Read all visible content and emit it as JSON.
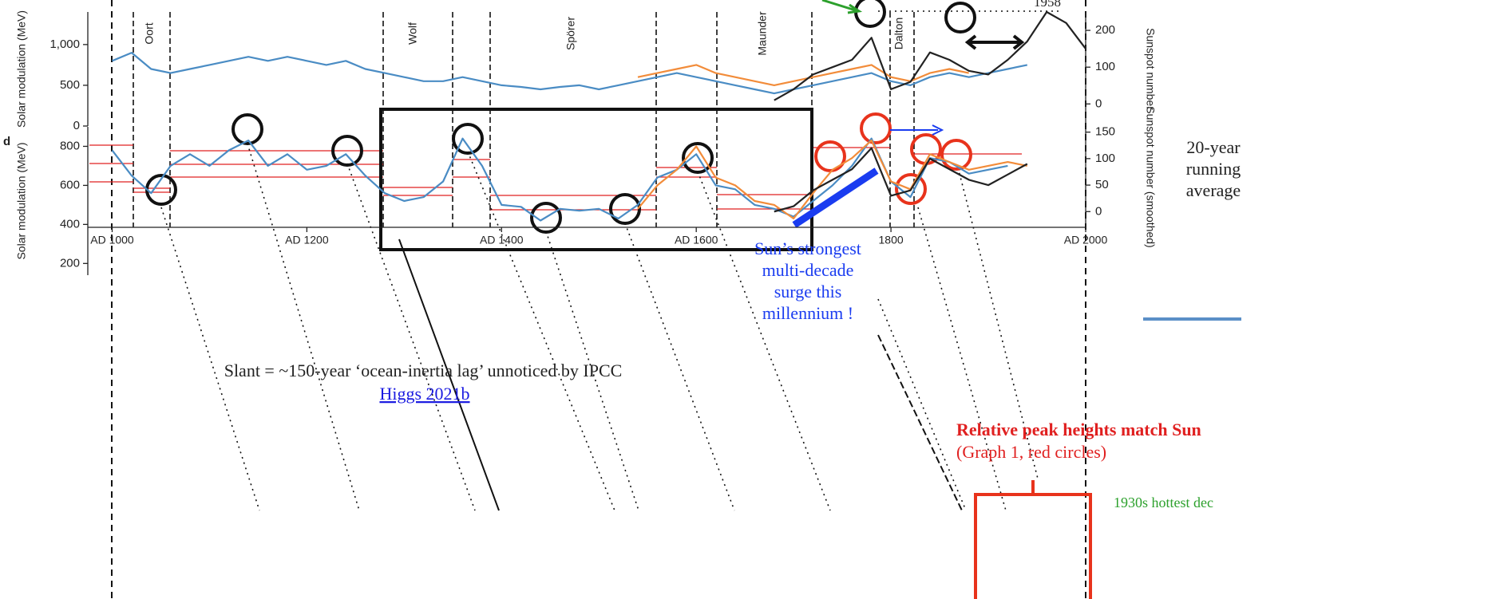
{
  "chart_data": [
    {
      "type": "line",
      "panel": "top",
      "ylabel": "Solar modulation (MeV)",
      "y2label": "Sunspot number",
      "xlim": [
        975,
        2000
      ],
      "ylim": [
        0,
        1400
      ],
      "y2lim": [
        -60,
        250
      ],
      "yticks": [
        0,
        500,
        {
          "value": 1000,
          "label": "1,000"
        }
      ],
      "y2ticks": [
        0,
        100,
        200
      ],
      "x": [
        1000,
        1020,
        1040,
        1060,
        1080,
        1100,
        1120,
        1140,
        1160,
        1180,
        1200,
        1220,
        1240,
        1260,
        1280,
        1300,
        1320,
        1340,
        1360,
        1380,
        1400,
        1420,
        1440,
        1460,
        1480,
        1500,
        1520,
        1540,
        1560,
        1580,
        1600,
        1620,
        1640,
        1660,
        1680,
        1700,
        1720,
        1740,
        1760,
        1780,
        1800,
        1820,
        1840,
        1860,
        1880,
        1900,
        1920,
        1940,
        1960,
        1980,
        2000
      ],
      "series": [
        {
          "color": "#4a8cc4",
          "values": [
            800,
            900,
            700,
            650,
            700,
            750,
            800,
            850,
            800,
            850,
            800,
            750,
            800,
            700,
            650,
            600,
            550,
            550,
            600,
            550,
            500,
            480,
            450,
            480,
            500,
            450,
            500,
            550,
            600,
            650,
            600,
            550,
            500,
            450,
            400,
            450,
            500,
            550,
            600,
            650,
            550,
            500,
            600,
            650,
            600,
            650,
            700,
            750,
            null,
            null,
            null
          ]
        },
        {
          "color": "#f28c3a",
          "values": [
            null,
            null,
            null,
            null,
            null,
            null,
            null,
            null,
            null,
            null,
            null,
            null,
            null,
            null,
            null,
            null,
            null,
            null,
            null,
            null,
            null,
            null,
            null,
            null,
            null,
            null,
            null,
            600,
            650,
            700,
            750,
            650,
            600,
            550,
            500,
            550,
            600,
            650,
            700,
            750,
            600,
            550,
            650,
            700,
            650,
            null,
            null,
            null,
            null,
            null,
            null
          ]
        },
        {
          "color": "#222222",
          "axis": "y2",
          "values": [
            null,
            null,
            null,
            null,
            null,
            null,
            null,
            null,
            null,
            null,
            null,
            null,
            null,
            null,
            null,
            null,
            null,
            null,
            null,
            null,
            null,
            null,
            null,
            null,
            null,
            null,
            null,
            null,
            null,
            null,
            null,
            null,
            null,
            null,
            10,
            40,
            80,
            100,
            120,
            180,
            40,
            60,
            140,
            120,
            90,
            80,
            120,
            170,
            250,
            220,
            150
          ]
        }
      ],
      "annotations": [
        "Oort",
        "Wolf",
        "Spörer",
        "Maunder",
        "Dalton",
        "1958"
      ]
    },
    {
      "type": "line",
      "panel": "bottom",
      "panel_label": "d",
      "ylabel": "Solar modulation (MeV)",
      "y2label": "Sunspot number (smoothed)",
      "xlim": [
        975,
        2000
      ],
      "ylim": [
        140,
        900
      ],
      "y2lim": [
        -120,
        160
      ],
      "yticks": [
        200,
        400,
        600,
        800
      ],
      "y2ticks": [
        0,
        50,
        100,
        150
      ],
      "xticks": [
        {
          "value": 1000,
          "label": "AD 1000"
        },
        {
          "value": 1200,
          "label": "AD 1200"
        },
        {
          "value": 1400,
          "label": "AD 1400"
        },
        {
          "value": 1600,
          "label": "AD 1600"
        },
        1800,
        {
          "value": 2000,
          "label": "AD 2000"
        }
      ],
      "x": [
        1000,
        1020,
        1040,
        1060,
        1080,
        1100,
        1120,
        1140,
        1160,
        1180,
        1200,
        1220,
        1240,
        1260,
        1280,
        1300,
        1320,
        1340,
        1360,
        1380,
        1400,
        1420,
        1440,
        1460,
        1480,
        1500,
        1520,
        1540,
        1560,
        1580,
        1600,
        1620,
        1640,
        1660,
        1680,
        1700,
        1720,
        1740,
        1760,
        1780,
        1800,
        1820,
        1840,
        1860,
        1880,
        1900,
        1920,
        1940,
        1960,
        1980,
        2000
      ],
      "series": [
        {
          "color": "#4a8cc4",
          "values": [
            780,
            650,
            560,
            700,
            760,
            700,
            780,
            830,
            700,
            760,
            680,
            700,
            760,
            650,
            560,
            520,
            540,
            620,
            840,
            700,
            500,
            490,
            420,
            480,
            470,
            480,
            430,
            500,
            640,
            680,
            760,
            600,
            580,
            500,
            480,
            440,
            520,
            600,
            700,
            840,
            620,
            540,
            740,
            720,
            660,
            680,
            700,
            null,
            null,
            null,
            null
          ]
        },
        {
          "color": "#f28c3a",
          "values": [
            null,
            null,
            null,
            null,
            null,
            null,
            null,
            null,
            null,
            null,
            null,
            null,
            null,
            null,
            null,
            null,
            null,
            null,
            null,
            null,
            null,
            null,
            null,
            null,
            null,
            null,
            null,
            480,
            600,
            680,
            800,
            640,
            600,
            520,
            500,
            430,
            560,
            680,
            740,
            830,
            620,
            580,
            760,
            720,
            680,
            700,
            720,
            700,
            null,
            null,
            null
          ]
        },
        {
          "color": "#222222",
          "axis": "y2",
          "values": [
            null,
            null,
            null,
            null,
            null,
            null,
            null,
            null,
            null,
            null,
            null,
            null,
            null,
            null,
            null,
            null,
            null,
            null,
            null,
            null,
            null,
            null,
            null,
            null,
            null,
            null,
            null,
            null,
            null,
            null,
            null,
            null,
            null,
            null,
            0,
            10,
            40,
            60,
            80,
            120,
            30,
            40,
            100,
            80,
            60,
            50,
            70,
            90,
            null,
            null,
            null
          ]
        }
      ]
    }
  ],
  "slide": {
    "running_average": [
      "20-year",
      "running",
      "average"
    ],
    "surge": [
      "Sun’s strongest",
      "multi-decade",
      "surge this",
      "millennium !"
    ],
    "slant": "Slant = ~150-year ‘ocean-inertia lag’ unnoticed by IPCC",
    "link": "Higgs 2021b",
    "peaks_title": "Relative peak heights match Sun",
    "peaks_note": "(Graph 1, red circles)",
    "hottest": "1930s hottest dec"
  }
}
